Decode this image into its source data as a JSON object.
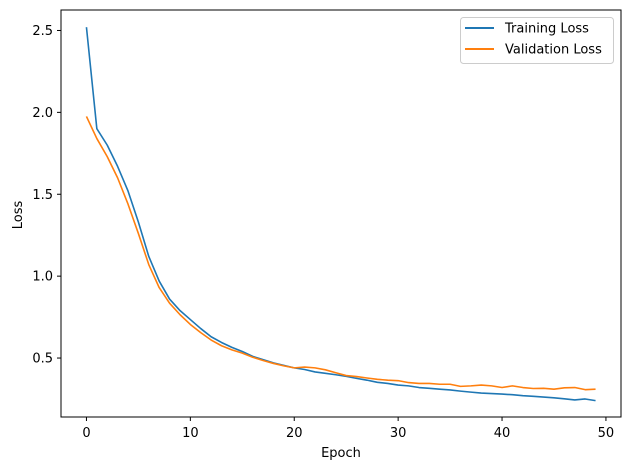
{
  "chart_data": {
    "type": "line",
    "title": "",
    "xlabel": "Epoch",
    "ylabel": "Loss",
    "xlim": [
      -2.45,
      51.45
    ],
    "ylim": [
      0.14,
      2.625
    ],
    "xticks": [
      0,
      10,
      20,
      30,
      40,
      50
    ],
    "yticks": [
      0.5,
      1.0,
      1.5,
      2.0,
      2.5
    ],
    "ytick_labels": [
      "0.5",
      "1.0",
      "1.5",
      "2.0",
      "2.5"
    ],
    "grid": false,
    "legend_position": "upper right",
    "x": [
      0,
      1,
      2,
      3,
      4,
      5,
      6,
      7,
      8,
      9,
      10,
      11,
      12,
      13,
      14,
      15,
      16,
      17,
      18,
      19,
      20,
      21,
      22,
      23,
      24,
      25,
      26,
      27,
      28,
      29,
      30,
      31,
      32,
      33,
      34,
      35,
      36,
      37,
      38,
      39,
      40,
      41,
      42,
      43,
      44,
      45,
      46,
      47,
      48,
      49
    ],
    "series": [
      {
        "name": "Training Loss",
        "color": "#1f77b4",
        "values": [
          2.52,
          1.9,
          1.8,
          1.67,
          1.52,
          1.33,
          1.12,
          0.97,
          0.86,
          0.79,
          0.735,
          0.68,
          0.63,
          0.595,
          0.565,
          0.54,
          0.51,
          0.49,
          0.47,
          0.455,
          0.44,
          0.43,
          0.415,
          0.407,
          0.398,
          0.388,
          0.376,
          0.365,
          0.352,
          0.345,
          0.335,
          0.33,
          0.32,
          0.315,
          0.31,
          0.305,
          0.298,
          0.292,
          0.286,
          0.283,
          0.28,
          0.276,
          0.27,
          0.266,
          0.262,
          0.257,
          0.251,
          0.244,
          0.25,
          0.24
        ]
      },
      {
        "name": "Validation Loss",
        "color": "#ff7f0e",
        "values": [
          1.975,
          1.84,
          1.73,
          1.6,
          1.44,
          1.26,
          1.07,
          0.93,
          0.835,
          0.765,
          0.705,
          0.655,
          0.61,
          0.575,
          0.55,
          0.53,
          0.505,
          0.485,
          0.467,
          0.452,
          0.44,
          0.445,
          0.44,
          0.428,
          0.41,
          0.393,
          0.387,
          0.378,
          0.37,
          0.365,
          0.362,
          0.35,
          0.345,
          0.345,
          0.34,
          0.34,
          0.327,
          0.33,
          0.335,
          0.33,
          0.32,
          0.33,
          0.32,
          0.314,
          0.315,
          0.31,
          0.318,
          0.32,
          0.307,
          0.31
        ]
      }
    ]
  },
  "legend": {
    "items": [
      {
        "label": "Training Loss",
        "color": "#1f77b4"
      },
      {
        "label": "Validation Loss",
        "color": "#ff7f0e"
      }
    ]
  },
  "axes": {
    "xlabel": "Epoch",
    "ylabel": "Loss",
    "xtick_labels": [
      "0",
      "10",
      "20",
      "30",
      "40",
      "50"
    ],
    "ytick_labels": [
      "0.5",
      "1.0",
      "1.5",
      "2.0",
      "2.5"
    ]
  }
}
